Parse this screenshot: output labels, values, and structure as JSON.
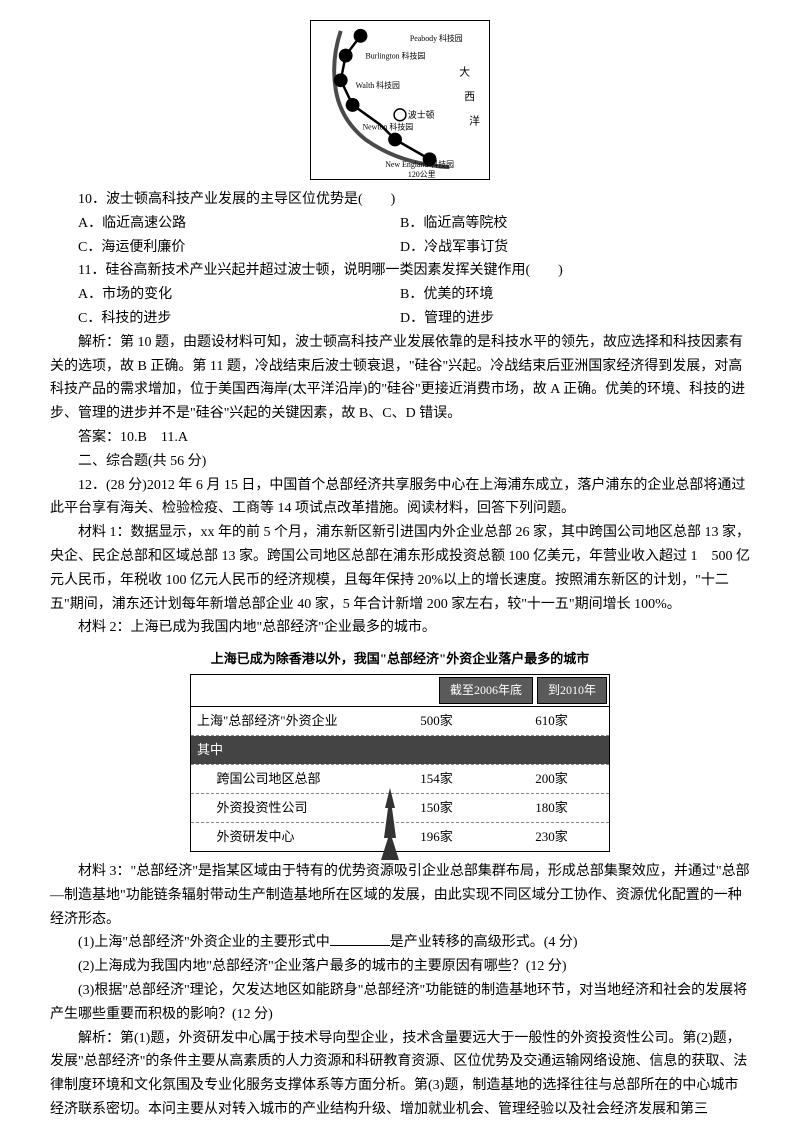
{
  "map": {
    "labels": [
      "Peabody 科技园",
      "Burlington 科技园",
      "Walth 科技园",
      "波士顿",
      "Newton 科技园",
      "New England 科技园",
      "大",
      "西",
      "洋",
      "120公里"
    ],
    "node_color": "#000000",
    "line_color": "#000000",
    "coast_color": "#4a4a4a"
  },
  "q10": {
    "stem": "10．波士顿高科技产业发展的主导区位优势是(　　)",
    "A": "A．临近高速公路",
    "B": "B．临近高等院校",
    "C": "C．海运便利廉价",
    "D": "D．冷战军事订货"
  },
  "q11": {
    "stem": "11．硅谷高新技术产业兴起并超过波士顿，说明哪一类因素发挥关键作用(　　)",
    "A": "A．市场的变化",
    "B": "B．优美的环境",
    "C": "C．科技的进步",
    "D": "D．管理的进步"
  },
  "analysis1": "解析：第 10 题，由题设材料可知，波士顿高科技产业发展依靠的是科技水平的领先，故应选择和科技因素有关的选项，故 B 正确。第 11 题，冷战结束后波士顿衰退，\"硅谷\"兴起。冷战结束后亚洲国家经济得到发展，对高科技产品的需求增加，位于美国西海岸(太平洋沿岸)的\"硅谷\"更接近消费市场，故 A 正确。优美的环境、科技的进步、管理的进步并不是\"硅谷\"兴起的关键因素，故 B、C、D 错误。",
  "answer1": "答案：10.B　11.A",
  "section2": "二、综合题(共 56 分)",
  "q12": {
    "stem": "12．(28 分)2012 年 6 月 15 日，中国首个总部经济共享服务中心在上海浦东成立，落户浦东的企业总部将通过此平台享有海关、检验检疫、工商等 14 项试点改革措施。阅读材料，回答下列问题。",
    "m1": "材料 1：数据显示，xx 年的前 5 个月，浦东新区新引进国内外企业总部 26 家，其中跨国公司地区总部 13 家，央企、民企总部和区域总部 13 家。跨国公司地区总部在浦东形成投资总额 100 亿美元，年营业收入超过 1　500 亿元人民币，年税收 100 亿元人民币的经济规模，且每年保持 20%以上的增长速度。按照浦东新区的计划，\"十二五\"期间，浦东还计划每年新增总部企业 40 家，5 年合计新增 200 家左右，较\"十一五\"期间增长 100%。",
    "m2": "材料 2：上海已成为我国内地\"总部经济\"企业最多的城市。",
    "m3": "材料 3：\"总部经济\"是指某区域由于特有的优势资源吸引企业总部集群布局，形成总部集聚效应，并通过\"总部—制造基地\"功能链条辐射带动生产制造基地所在区域的发展，由此实现不同区域分工协作、资源优化配置的一种经济形态。",
    "sub1_a": "(1)上海\"总部经济\"外资企业的主要形式中",
    "sub1_b": "是产业转移的高级形式。(4 分)",
    "sub2": "(2)上海成为我国内地\"总部经济\"企业落户最多的城市的主要原因有哪些？(12 分)",
    "sub3": "(3)根据\"总部经济\"理论，欠发达地区如能跻身\"总部经济\"功能链的制造基地环节，对当地经济和社会的发展将产生哪些重要而积极的影响？(12 分)"
  },
  "table": {
    "title": "上海已成为除香港以外，我国\"总部经济\"外资企业落户最多的城市",
    "col1": "截至2006年底",
    "col2": "到2010年",
    "rows": [
      {
        "label": "上海\"总部经济\"外资企业",
        "v1": "500家",
        "v2": "610家",
        "dark": false
      },
      {
        "label": "其中",
        "v1": "",
        "v2": "",
        "dark": true
      },
      {
        "label": "跨国公司地区总部",
        "v1": "154家",
        "v2": "200家",
        "dark": false
      },
      {
        "label": "外资投资性公司",
        "v1": "150家",
        "v2": "180家",
        "dark": false
      },
      {
        "label": "外资研发中心",
        "v1": "196家",
        "v2": "230家",
        "dark": false
      }
    ]
  },
  "analysis2": "解析：第(1)题，外资研发中心属于技术导向型企业，技术含量要远大于一般性的外资投资性公司。第(2)题，发展\"总部经济\"的条件主要从高素质的人力资源和科研教育资源、区位优势及交通运输网络设施、信息的获取、法律制度环境和文化氛围及专业化服务支撑体系等方面分析。第(3)题，制造基地的选择往往与总部所在的中心城市经济联系密切。本问主要从对转入城市的产业结构升级、增加就业机会、管理经验以及社会经济发展和第三"
}
